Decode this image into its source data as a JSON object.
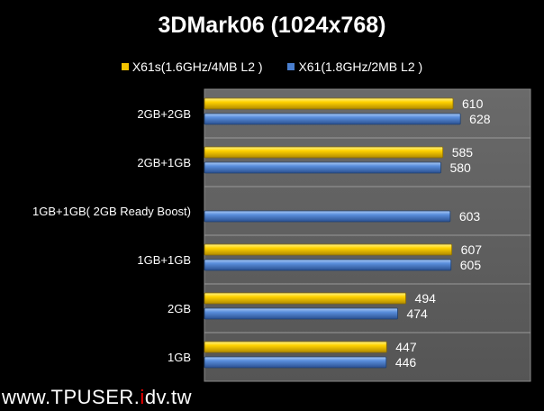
{
  "chart_data": {
    "type": "bar",
    "orientation": "horizontal",
    "title": "3DMark06 (1024x768)",
    "categories": [
      "2GB+2GB",
      "2GB+1GB",
      "1GB+1GB( 2GB Ready Boost)",
      "1GB+1GB",
      "2GB",
      "1GB"
    ],
    "series": [
      {
        "name": "X61s(1.6GHz/4MB L2 )",
        "color": "#f5c400",
        "values": [
          610,
          585,
          null,
          607,
          494,
          447
        ]
      },
      {
        "name": "X61(1.8GHz/2MB L2 )",
        "color": "#4a7fcf",
        "values": [
          628,
          580,
          603,
          605,
          474,
          446
        ]
      }
    ],
    "xlim": [
      0,
      800
    ],
    "grid": true,
    "legend": "top",
    "data_labels": true
  },
  "watermark": {
    "prefix": "www.TPUSER.",
    "red": "i",
    "suffix": "dv.tw"
  }
}
